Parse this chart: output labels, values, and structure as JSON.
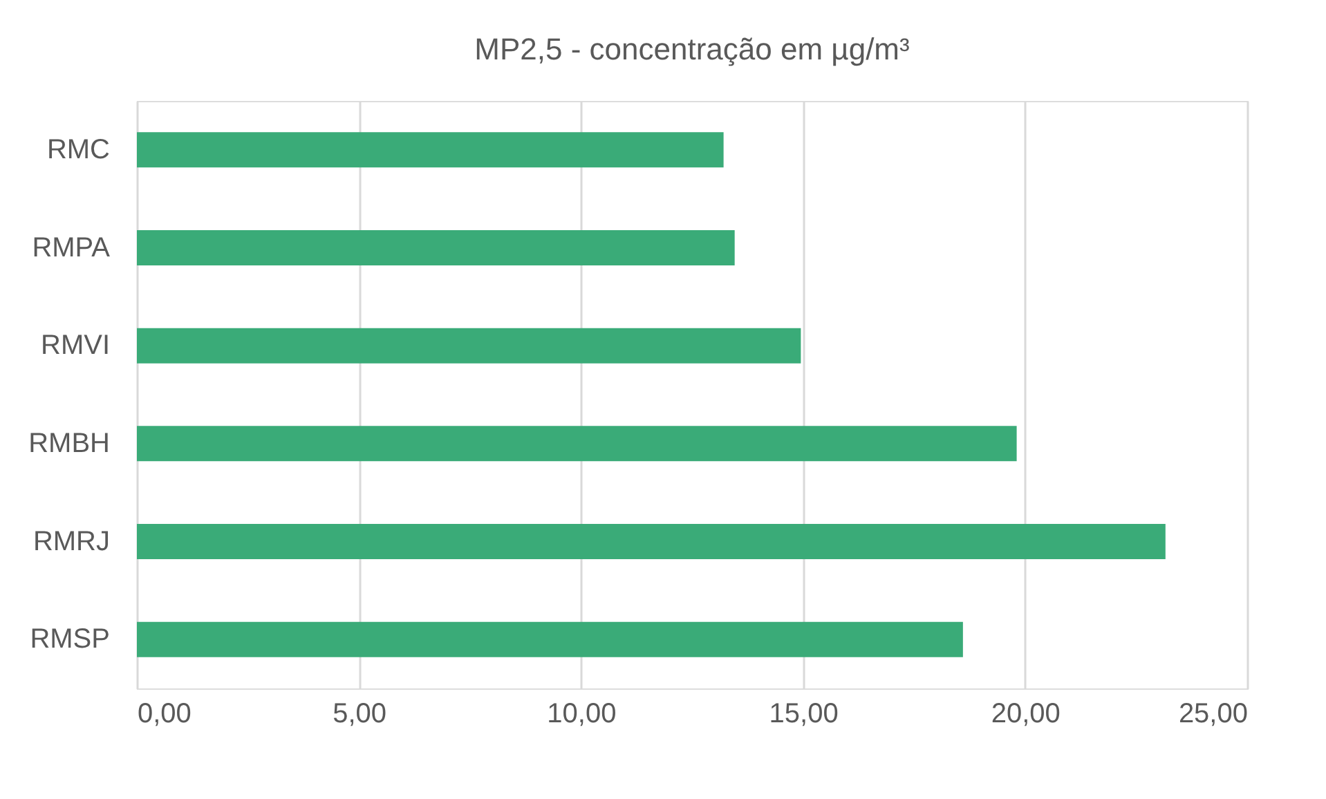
{
  "chart_data": {
    "type": "bar",
    "orientation": "horizontal",
    "title": "MP2,5 - concentração em µg/m³",
    "categories": [
      "RMC",
      "RMPA",
      "RMVI",
      "RMBH",
      "RMRJ",
      "RMSP"
    ],
    "values": [
      13.21,
      13.46,
      14.95,
      19.81,
      23.16,
      18.6
    ],
    "color": "#3aab78",
    "xlim": [
      0,
      25
    ],
    "xticks": [
      {
        "value": 0,
        "label": "0,00"
      },
      {
        "value": 5,
        "label": "5,00"
      },
      {
        "value": 10,
        "label": "10,00"
      },
      {
        "value": 15,
        "label": "15,00"
      },
      {
        "value": 20,
        "label": "20,00"
      },
      {
        "value": 25,
        "label": "25,00"
      }
    ],
    "grid": "x"
  }
}
